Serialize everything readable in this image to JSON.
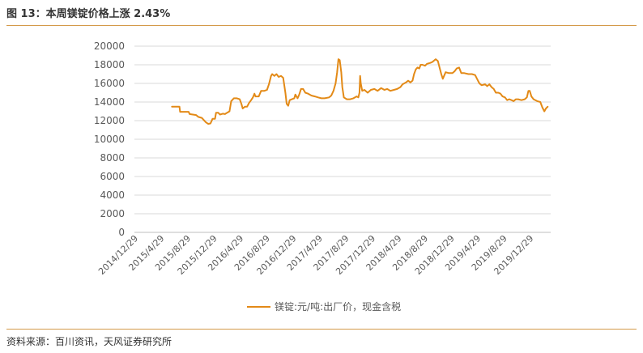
{
  "figure": {
    "title": "图 13：本周镁锭价格上涨 2.43%",
    "source": "资料来源：百川资讯，天风证券研究所"
  },
  "colors": {
    "line": "#E38A17",
    "rule": "#D49A4A",
    "grid": "#D9D9D9",
    "text": "#595959"
  },
  "chart_data": {
    "type": "line",
    "title": "",
    "xlabel": "",
    "ylabel": "",
    "ylim": [
      0,
      20000
    ],
    "yticks": [
      0,
      2000,
      4000,
      6000,
      8000,
      10000,
      12000,
      14000,
      16000,
      18000,
      20000
    ],
    "xlim": [
      "2014-12-29",
      "2020-04-03"
    ],
    "xtick_labels": [
      "2014/12/29",
      "2015/4/29",
      "2015/8/29",
      "2015/12/29",
      "2016/4/29",
      "2016/8/29",
      "2016/12/29",
      "2017/4/29",
      "2017/8/29",
      "2017/12/29",
      "2018/4/29",
      "2018/8/29",
      "2018/12/29",
      "2019/4/29",
      "2019/8/29",
      "2019/12/29"
    ],
    "xtick_dates": [
      "2014-12-29",
      "2015-04-29",
      "2015-08-29",
      "2015-12-29",
      "2016-04-29",
      "2016-08-29",
      "2016-12-29",
      "2017-04-29",
      "2017-08-29",
      "2017-12-29",
      "2018-04-29",
      "2018-08-29",
      "2018-12-29",
      "2019-04-29",
      "2019-08-29",
      "2019-12-29"
    ],
    "grid": true,
    "legend_position": "bottom",
    "series": [
      {
        "name": "镁锭:元/吨:出厂价，现金含税",
        "points": [
          [
            "2015-06-20",
            13500
          ],
          [
            "2015-07-25",
            13500
          ],
          [
            "2015-07-28",
            12950
          ],
          [
            "2015-09-05",
            12950
          ],
          [
            "2015-09-10",
            12700
          ],
          [
            "2015-10-10",
            12600
          ],
          [
            "2015-10-20",
            12400
          ],
          [
            "2015-11-05",
            12300
          ],
          [
            "2015-11-15",
            12050
          ],
          [
            "2015-11-25",
            11800
          ],
          [
            "2015-12-05",
            11650
          ],
          [
            "2015-12-15",
            11700
          ],
          [
            "2015-12-25",
            12200
          ],
          [
            "2016-01-05",
            12200
          ],
          [
            "2016-01-10",
            12850
          ],
          [
            "2016-01-20",
            12850
          ],
          [
            "2016-01-28",
            12650
          ],
          [
            "2016-02-10",
            12750
          ],
          [
            "2016-02-20",
            12700
          ],
          [
            "2016-03-01",
            12850
          ],
          [
            "2016-03-12",
            13000
          ],
          [
            "2016-03-20",
            14100
          ],
          [
            "2016-04-01",
            14400
          ],
          [
            "2016-04-15",
            14400
          ],
          [
            "2016-04-28",
            14300
          ],
          [
            "2016-05-06",
            13800
          ],
          [
            "2016-05-12",
            13300
          ],
          [
            "2016-05-22",
            13500
          ],
          [
            "2016-06-01",
            13500
          ],
          [
            "2016-06-10",
            13900
          ],
          [
            "2016-06-20",
            14200
          ],
          [
            "2016-06-28",
            14500
          ],
          [
            "2016-07-05",
            14900
          ],
          [
            "2016-07-10",
            14600
          ],
          [
            "2016-07-25",
            14600
          ],
          [
            "2016-08-05",
            15200
          ],
          [
            "2016-08-20",
            15200
          ],
          [
            "2016-09-01",
            15300
          ],
          [
            "2016-09-10",
            15900
          ],
          [
            "2016-09-20",
            16800
          ],
          [
            "2016-09-25",
            17000
          ],
          [
            "2016-10-05",
            16800
          ],
          [
            "2016-10-15",
            17000
          ],
          [
            "2016-10-25",
            16700
          ],
          [
            "2016-11-05",
            16800
          ],
          [
            "2016-11-15",
            16600
          ],
          [
            "2016-11-25",
            15000
          ],
          [
            "2016-12-01",
            13800
          ],
          [
            "2016-12-08",
            13600
          ],
          [
            "2016-12-15",
            14200
          ],
          [
            "2016-12-25",
            14300
          ],
          [
            "2017-01-05",
            14400
          ],
          [
            "2017-01-10",
            14800
          ],
          [
            "2017-01-20",
            14400
          ],
          [
            "2017-01-28",
            14800
          ],
          [
            "2017-02-05",
            15400
          ],
          [
            "2017-02-15",
            15400
          ],
          [
            "2017-02-25",
            15000
          ],
          [
            "2017-03-10",
            14900
          ],
          [
            "2017-03-25",
            14700
          ],
          [
            "2017-04-10",
            14600
          ],
          [
            "2017-04-25",
            14500
          ],
          [
            "2017-05-10",
            14400
          ],
          [
            "2017-05-25",
            14400
          ],
          [
            "2017-06-15",
            14500
          ],
          [
            "2017-06-25",
            14700
          ],
          [
            "2017-07-05",
            15200
          ],
          [
            "2017-07-15",
            16000
          ],
          [
            "2017-07-22",
            17200
          ],
          [
            "2017-07-28",
            18600
          ],
          [
            "2017-08-03",
            18500
          ],
          [
            "2017-08-10",
            17200
          ],
          [
            "2017-08-15",
            15600
          ],
          [
            "2017-08-22",
            14500
          ],
          [
            "2017-09-05",
            14300
          ],
          [
            "2017-09-20",
            14300
          ],
          [
            "2017-10-05",
            14400
          ],
          [
            "2017-10-20",
            14600
          ],
          [
            "2017-10-28",
            14500
          ],
          [
            "2017-11-02",
            15000
          ],
          [
            "2017-11-05",
            16800
          ],
          [
            "2017-11-08",
            16000
          ],
          [
            "2017-11-15",
            15200
          ],
          [
            "2017-11-25",
            15300
          ],
          [
            "2017-12-10",
            15000
          ],
          [
            "2017-12-25",
            15300
          ],
          [
            "2018-01-10",
            15400
          ],
          [
            "2018-01-25",
            15200
          ],
          [
            "2018-02-10",
            15500
          ],
          [
            "2018-02-25",
            15300
          ],
          [
            "2018-03-10",
            15400
          ],
          [
            "2018-03-25",
            15200
          ],
          [
            "2018-04-10",
            15300
          ],
          [
            "2018-04-25",
            15400
          ],
          [
            "2018-05-10",
            15600
          ],
          [
            "2018-05-20",
            15900
          ],
          [
            "2018-06-05",
            16100
          ],
          [
            "2018-06-15",
            16300
          ],
          [
            "2018-06-25",
            16100
          ],
          [
            "2018-07-05",
            16300
          ],
          [
            "2018-07-12",
            17000
          ],
          [
            "2018-07-20",
            17500
          ],
          [
            "2018-07-28",
            17700
          ],
          [
            "2018-08-05",
            17600
          ],
          [
            "2018-08-12",
            18000
          ],
          [
            "2018-08-20",
            18000
          ],
          [
            "2018-09-01",
            17900
          ],
          [
            "2018-09-10",
            18100
          ],
          [
            "2018-09-25",
            18200
          ],
          [
            "2018-10-05",
            18300
          ],
          [
            "2018-10-20",
            18600
          ],
          [
            "2018-10-30",
            18400
          ],
          [
            "2018-11-08",
            17600
          ],
          [
            "2018-11-15",
            17000
          ],
          [
            "2018-11-22",
            16500
          ],
          [
            "2018-12-05",
            17200
          ],
          [
            "2018-12-20",
            17100
          ],
          [
            "2019-01-05",
            17100
          ],
          [
            "2019-01-15",
            17300
          ],
          [
            "2019-01-25",
            17600
          ],
          [
            "2019-02-05",
            17700
          ],
          [
            "2019-02-15",
            17100
          ],
          [
            "2019-03-01",
            17100
          ],
          [
            "2019-03-20",
            17000
          ],
          [
            "2019-04-05",
            17000
          ],
          [
            "2019-04-20",
            16900
          ],
          [
            "2019-05-01",
            16400
          ],
          [
            "2019-05-10",
            16000
          ],
          [
            "2019-05-20",
            15800
          ],
          [
            "2019-06-05",
            15900
          ],
          [
            "2019-06-15",
            15700
          ],
          [
            "2019-06-25",
            15900
          ],
          [
            "2019-07-05",
            15600
          ],
          [
            "2019-07-15",
            15400
          ],
          [
            "2019-07-25",
            15000
          ],
          [
            "2019-08-05",
            15000
          ],
          [
            "2019-08-15",
            14900
          ],
          [
            "2019-08-25",
            14600
          ],
          [
            "2019-09-05",
            14500
          ],
          [
            "2019-09-15",
            14200
          ],
          [
            "2019-09-25",
            14300
          ],
          [
            "2019-10-05",
            14200
          ],
          [
            "2019-10-15",
            14100
          ],
          [
            "2019-10-25",
            14300
          ],
          [
            "2019-11-05",
            14300
          ],
          [
            "2019-11-20",
            14200
          ],
          [
            "2019-12-05",
            14300
          ],
          [
            "2019-12-15",
            14500
          ],
          [
            "2019-12-22",
            15200
          ],
          [
            "2019-12-28",
            15200
          ],
          [
            "2020-01-05",
            14600
          ],
          [
            "2020-01-15",
            14300
          ],
          [
            "2020-02-01",
            14100
          ],
          [
            "2020-02-15",
            14000
          ],
          [
            "2020-02-25",
            13400
          ],
          [
            "2020-03-05",
            13000
          ],
          [
            "2020-03-12",
            13300
          ],
          [
            "2020-03-20",
            13500
          ]
        ]
      }
    ]
  }
}
